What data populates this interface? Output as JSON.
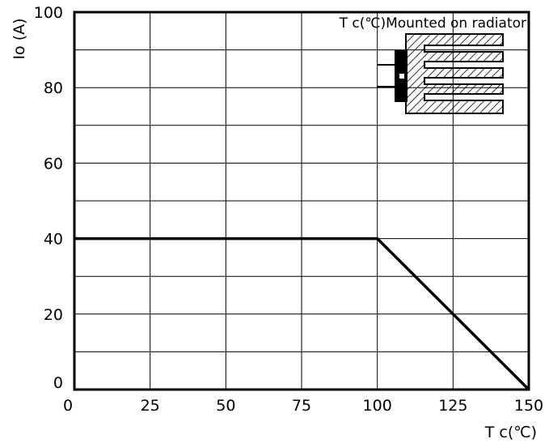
{
  "chart_data": {
    "type": "line",
    "title": "",
    "annotation": "T c(℃)Mounted on radiator",
    "xlabel": "T c(℃)",
    "ylabel": "Io (A)",
    "xlim": [
      0,
      150
    ],
    "ylim": [
      0,
      100
    ],
    "x_ticks": [
      "0",
      "25",
      "50",
      "75",
      "100",
      "125",
      "150"
    ],
    "y_ticks": [
      "0",
      "20",
      "40",
      "60",
      "80",
      "100"
    ],
    "grid": true,
    "series": [
      {
        "x": [
          0,
          100,
          150
        ],
        "y": [
          40,
          40,
          0
        ]
      }
    ]
  }
}
